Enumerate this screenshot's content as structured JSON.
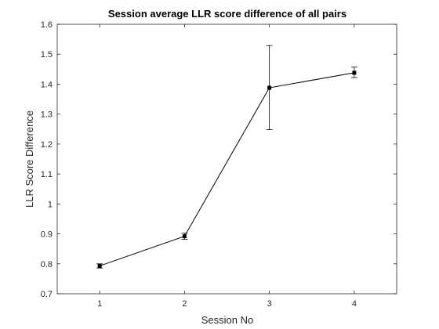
{
  "chart_data": {
    "type": "line",
    "title": "Session average LLR score difference of all pairs",
    "xlabel": "Session No",
    "ylabel": "LLR Score Difference",
    "xlim": [
      0.5,
      4.5
    ],
    "ylim": [
      0.7,
      1.6
    ],
    "xticks": [
      "1",
      "2",
      "3",
      "4"
    ],
    "yticks": [
      "0.7",
      "0.8",
      "0.9",
      "1",
      "1.1",
      "1.2",
      "1.3",
      "1.4",
      "1.5",
      "1.6"
    ],
    "grid": false,
    "legend": "none",
    "series": [
      {
        "x": [
          1,
          2,
          3,
          4
        ],
        "y": [
          0.793,
          0.892,
          1.388,
          1.438
        ],
        "error_low": [
          0.007,
          0.01,
          0.14,
          0.016
        ],
        "error_high": [
          0.007,
          0.01,
          0.141,
          0.019
        ],
        "color": "#000000",
        "marker": "square"
      }
    ]
  }
}
